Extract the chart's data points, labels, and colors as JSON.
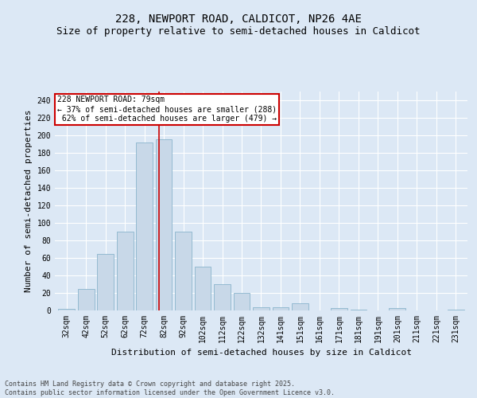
{
  "title_line1": "228, NEWPORT ROAD, CALDICOT, NP26 4AE",
  "title_line2": "Size of property relative to semi-detached houses in Caldicot",
  "xlabel": "Distribution of semi-detached houses by size in Caldicot",
  "ylabel": "Number of semi-detached properties",
  "bar_color": "#c8d8e8",
  "bar_edge_color": "#8ab4cc",
  "annotation_box_color": "#cc0000",
  "vline_color": "#cc0000",
  "background_color": "#dce8f5",
  "plot_bg_color": "#dce8f5",
  "grid_color": "#ffffff",
  "footer": "Contains HM Land Registry data © Crown copyright and database right 2025.\nContains public sector information licensed under the Open Government Licence v3.0.",
  "categories": [
    "32sqm",
    "42sqm",
    "52sqm",
    "62sqm",
    "72sqm",
    "82sqm",
    "92sqm",
    "102sqm",
    "112sqm",
    "122sqm",
    "132sqm",
    "141sqm",
    "151sqm",
    "161sqm",
    "171sqm",
    "181sqm",
    "191sqm",
    "201sqm",
    "211sqm",
    "221sqm",
    "231sqm"
  ],
  "values": [
    2,
    25,
    65,
    90,
    192,
    195,
    90,
    50,
    30,
    20,
    4,
    4,
    8,
    0,
    3,
    1,
    0,
    3,
    0,
    0,
    1
  ],
  "property_label": "228 NEWPORT ROAD: 79sqm",
  "smaller_pct": 37,
  "smaller_count": 288,
  "larger_pct": 62,
  "larger_count": 479,
  "ylim": [
    0,
    250
  ],
  "yticks": [
    0,
    20,
    40,
    60,
    80,
    100,
    120,
    140,
    160,
    180,
    200,
    220,
    240
  ],
  "vline_position": 4.75,
  "title_fontsize": 10,
  "subtitle_fontsize": 9,
  "axis_label_fontsize": 8,
  "tick_fontsize": 7,
  "annotation_fontsize": 7,
  "footer_fontsize": 6
}
